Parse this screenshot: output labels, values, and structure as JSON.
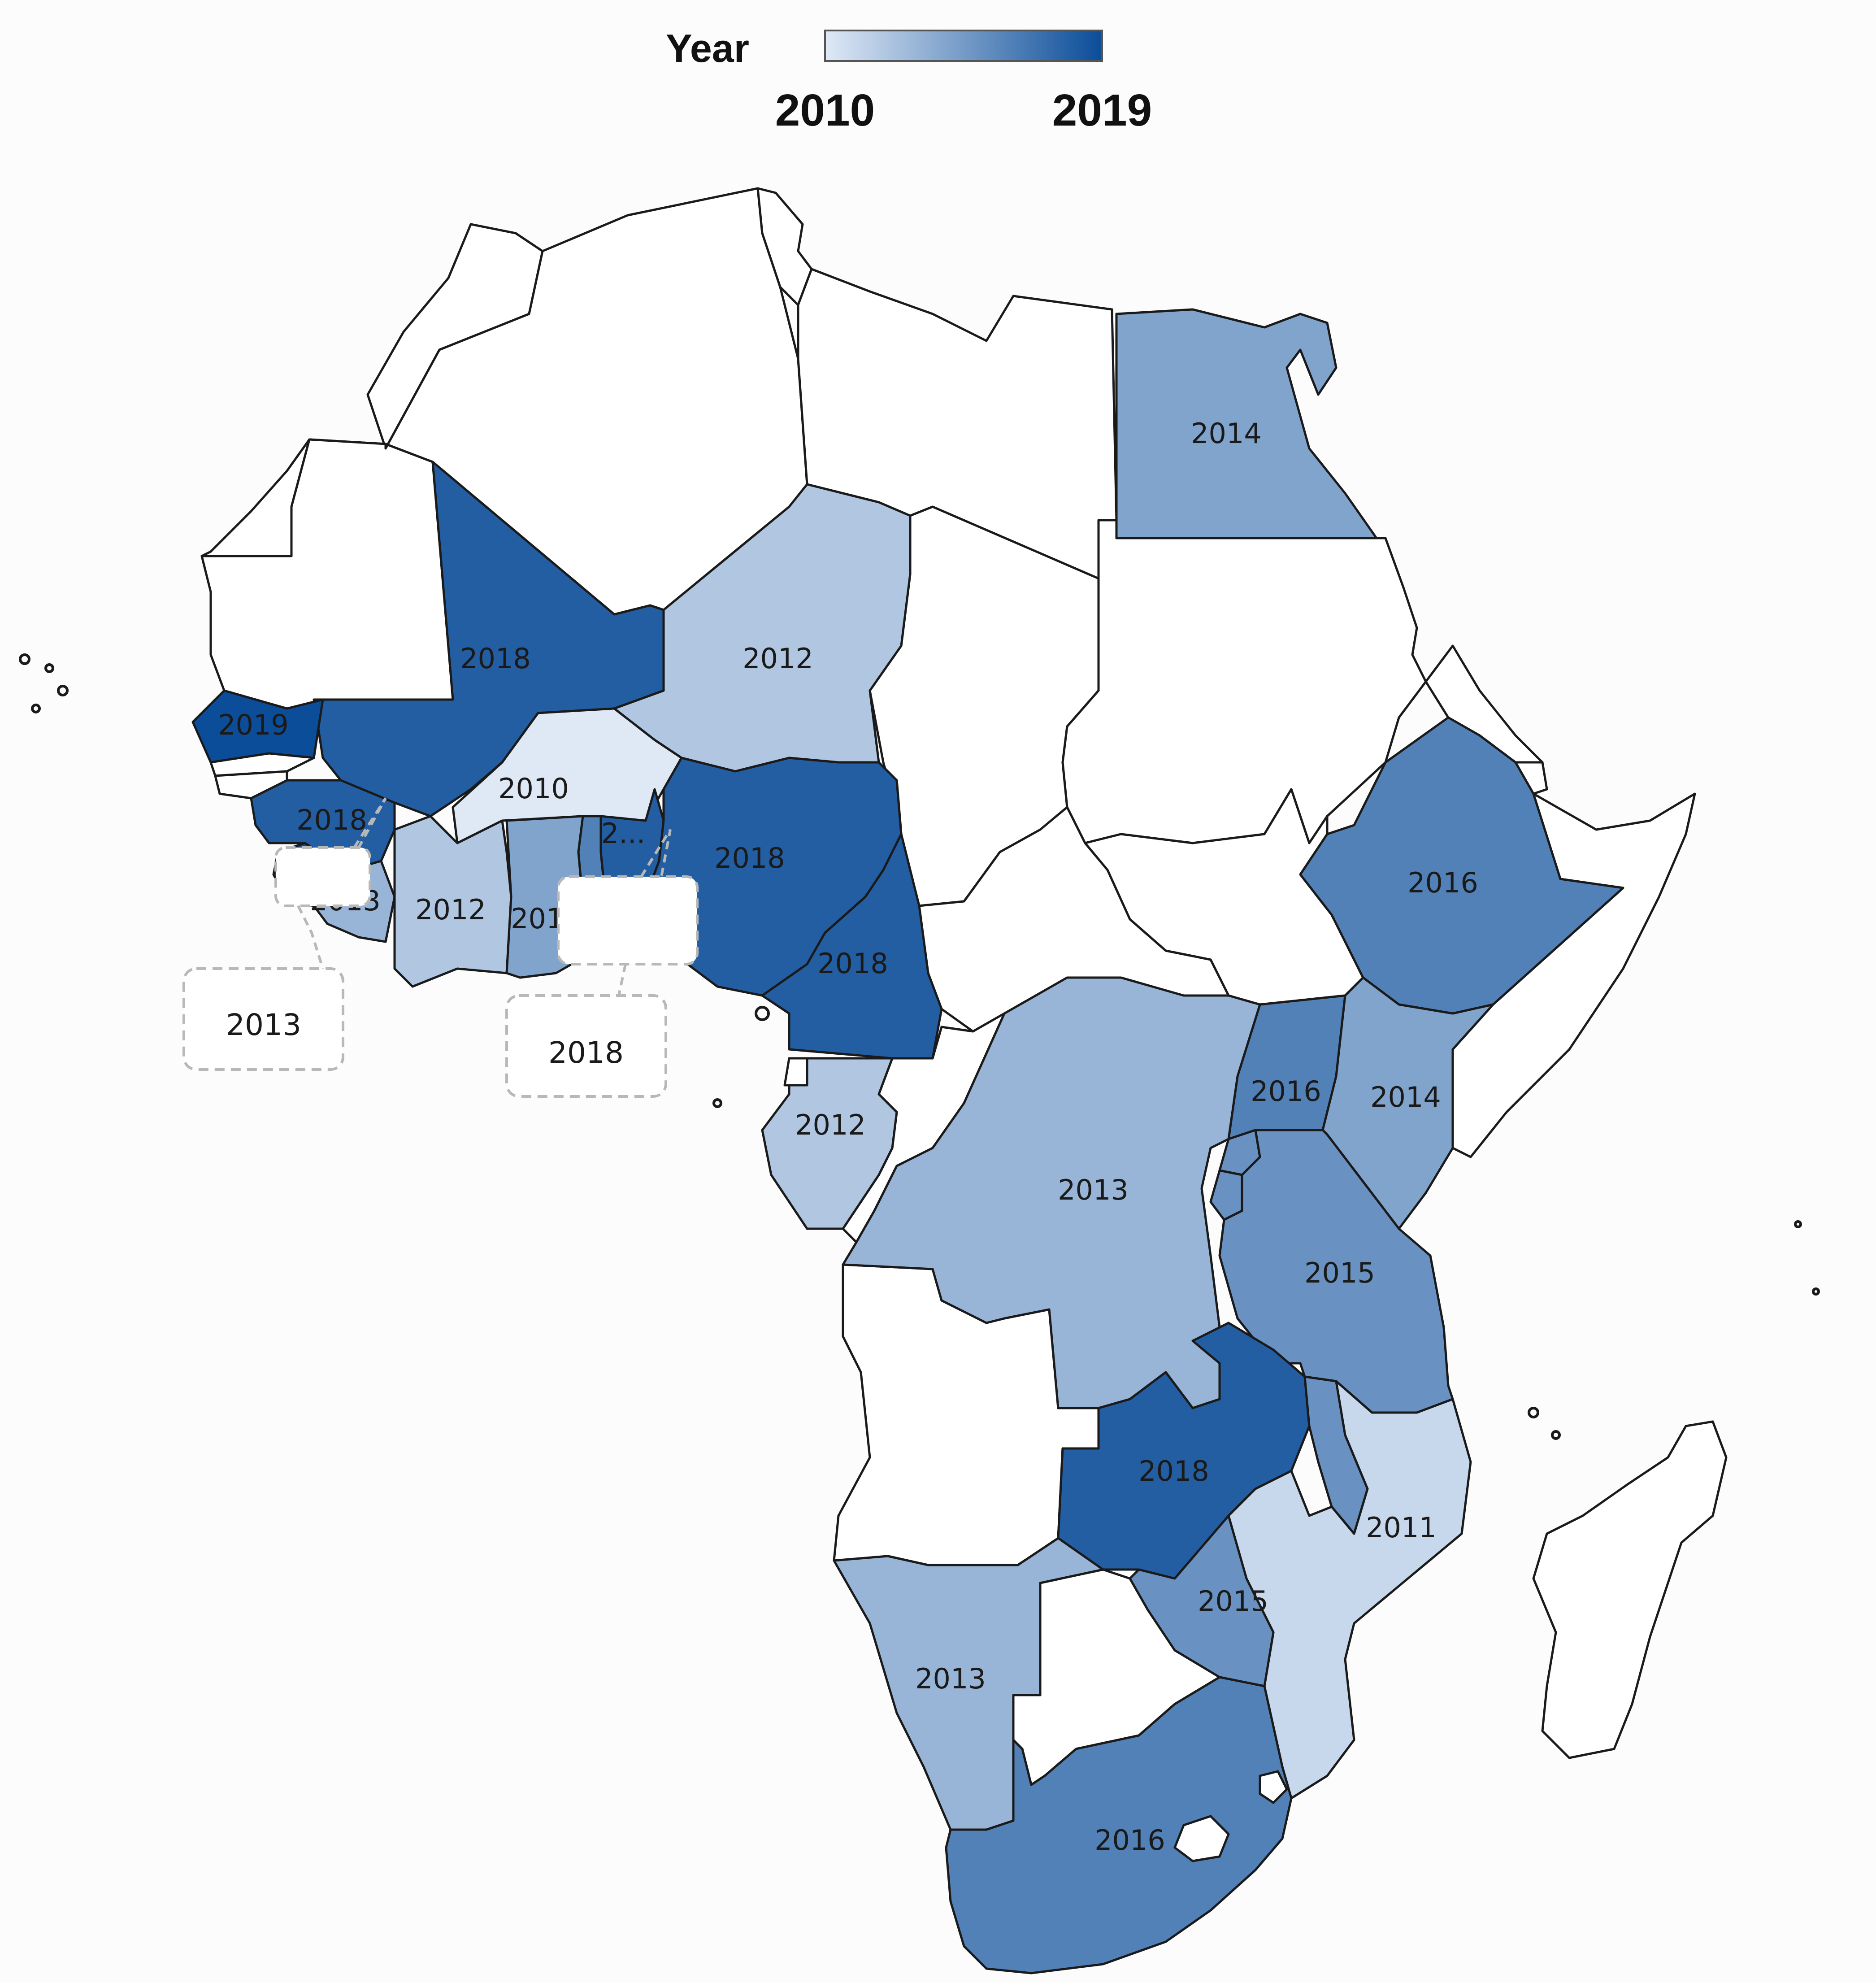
{
  "legend": {
    "title": "Year",
    "min_label": "2010",
    "max_label": "2019",
    "min_year": 2010,
    "max_year": 2019,
    "color_low": "#dfe9f6",
    "color_high": "#0b4d99"
  },
  "colors": {
    "no_data": "#ffffff",
    "border": "#1a1a1a",
    "background": "#fcfcfc",
    "callout_border": "#b8b8b8"
  },
  "regions": [
    {
      "name": "egypt",
      "year": "2014"
    },
    {
      "name": "mali",
      "year": "2018"
    },
    {
      "name": "niger",
      "year": "2012"
    },
    {
      "name": "senegal",
      "year": "2019"
    },
    {
      "name": "guinea",
      "year": "2018"
    },
    {
      "name": "burkina-faso",
      "year": "2010"
    },
    {
      "name": "sierra-leone",
      "year": "2"
    },
    {
      "name": "liberia",
      "year": "2013"
    },
    {
      "name": "cote-divoire",
      "year": "2012"
    },
    {
      "name": "ghana",
      "year": "2014"
    },
    {
      "name": "togo",
      "year": "2..."
    },
    {
      "name": "benin",
      "year": "2018"
    },
    {
      "name": "nigeria",
      "year": "2018"
    },
    {
      "name": "cameroon",
      "year": "2018"
    },
    {
      "name": "gabon",
      "year": "2012"
    },
    {
      "name": "ethiopia",
      "year": "2016"
    },
    {
      "name": "uganda",
      "year": "2016"
    },
    {
      "name": "kenya",
      "year": "2014"
    },
    {
      "name": "dr-congo",
      "year": "2013"
    },
    {
      "name": "tanzania",
      "year": "2015"
    },
    {
      "name": "zambia",
      "year": "2018"
    },
    {
      "name": "mozambique",
      "year": "2011"
    },
    {
      "name": "zimbabwe",
      "year": "2015"
    },
    {
      "name": "namibia",
      "year": "2013"
    },
    {
      "name": "south-africa",
      "year": "2016"
    },
    {
      "name": "malawi",
      "year": "2015"
    },
    {
      "name": "rwanda",
      "year": "2015"
    },
    {
      "name": "burundi",
      "year": "2015"
    }
  ],
  "callouts": [
    {
      "name": "callout-sierra-leone",
      "label": "2013"
    },
    {
      "name": "callout-togo",
      "label": "2018"
    }
  ]
}
